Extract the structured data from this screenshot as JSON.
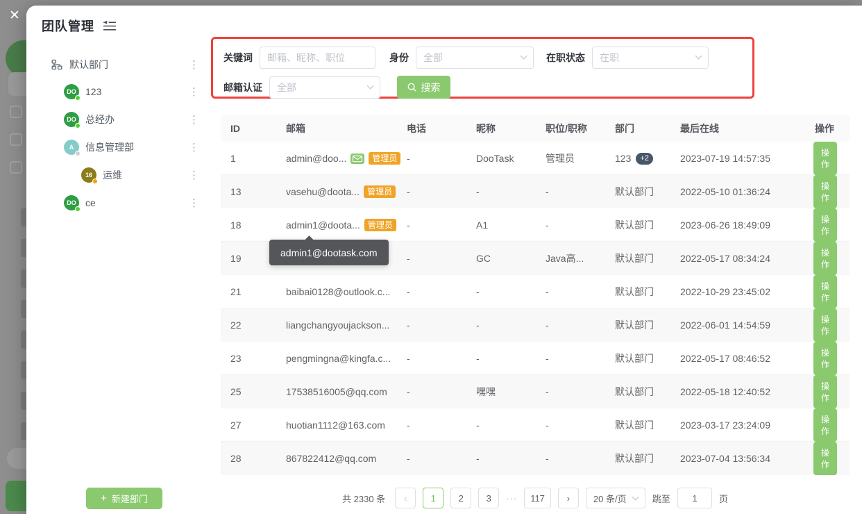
{
  "colors": {
    "accent_green": "#8bc96f",
    "highlight_red": "#f2403a",
    "badge_orange": "#f0a427",
    "count_badge_bg": "#475669",
    "tooltip_bg": "#55565a"
  },
  "icons": {
    "close": "✕",
    "more_vertical": "⋮",
    "prev": "‹",
    "next": "›",
    "plus": "+"
  },
  "modal": {
    "title": "团队管理"
  },
  "sidebar": {
    "root_label": "默认部门",
    "items": [
      {
        "label": "123",
        "avatar_text": "DO",
        "avatar_color": "#2e9e44",
        "dot_color": "#4ed22e",
        "depth": 1
      },
      {
        "label": "总经办",
        "avatar_text": "DO",
        "avatar_color": "#2e9e44",
        "dot_color": "#4ed22e",
        "depth": 1
      },
      {
        "label": "信息管理部",
        "avatar_text": "A",
        "avatar_color": "#85ccc9",
        "dot_color": "#cfcfcf",
        "depth": 1
      },
      {
        "label": "运维",
        "avatar_text": "16",
        "avatar_color": "#8a7d1a",
        "dot_color": "#ff9d00",
        "depth": 2
      },
      {
        "label": "ce",
        "avatar_text": "DO",
        "avatar_color": "#2e9e44",
        "dot_color": "#4ed22e",
        "depth": 1
      }
    ],
    "new_button_label": "新建部门"
  },
  "search": {
    "keyword_label": "关键词",
    "keyword_placeholder": "邮箱、昵称、职位",
    "keyword_value": "",
    "identity_label": "身份",
    "identity_value": "全部",
    "status_label": "在职状态",
    "status_value": "在职",
    "verify_label": "邮箱认证",
    "verify_value": "全部",
    "button_label": "搜索"
  },
  "table": {
    "columns": [
      "ID",
      "邮箱",
      "电话",
      "昵称",
      "职位/职称",
      "部门",
      "最后在线",
      "操作"
    ],
    "admin_badge_label": "管理员",
    "action_label": "操作",
    "rows": [
      {
        "id": "1",
        "email": "admin@doo...",
        "has_mail_icon": true,
        "is_admin": true,
        "phone": "-",
        "nickname": "DooTask",
        "position": "管理员",
        "department": "123",
        "department_extra": "+2",
        "last_online": "2023-07-19 14:57:35"
      },
      {
        "id": "13",
        "email": "vasehu@doota...",
        "has_mail_icon": false,
        "is_admin": true,
        "phone": "-",
        "nickname": "-",
        "position": "-",
        "department": "默认部门",
        "department_extra": "",
        "last_online": "2022-05-10 01:36:24"
      },
      {
        "id": "18",
        "email": "admin1@doota...",
        "has_mail_icon": false,
        "is_admin": true,
        "phone": "-",
        "nickname": "A1",
        "position": "-",
        "department": "默认部门",
        "department_extra": "",
        "last_online": "2023-06-26 18:49:09"
      },
      {
        "id": "19",
        "email": "",
        "has_mail_icon": false,
        "is_admin": false,
        "phone": "-",
        "nickname": "GC",
        "position": "Java高...",
        "department": "默认部门",
        "department_extra": "",
        "last_online": "2022-05-17 08:34:24"
      },
      {
        "id": "21",
        "email": "baibai0128@outlook.c...",
        "has_mail_icon": false,
        "is_admin": false,
        "phone": "-",
        "nickname": "-",
        "position": "-",
        "department": "默认部门",
        "department_extra": "",
        "last_online": "2022-10-29 23:45:02"
      },
      {
        "id": "22",
        "email": "liangchangyoujackson...",
        "has_mail_icon": false,
        "is_admin": false,
        "phone": "-",
        "nickname": "-",
        "position": "-",
        "department": "默认部门",
        "department_extra": "",
        "last_online": "2022-06-01 14:54:59"
      },
      {
        "id": "23",
        "email": "pengmingna@kingfa.c...",
        "has_mail_icon": false,
        "is_admin": false,
        "phone": "-",
        "nickname": "-",
        "position": "-",
        "department": "默认部门",
        "department_extra": "",
        "last_online": "2022-05-17 08:46:52"
      },
      {
        "id": "25",
        "email": "17538516005@qq.com",
        "has_mail_icon": false,
        "is_admin": false,
        "phone": "-",
        "nickname": "嘿嘿",
        "position": "-",
        "department": "默认部门",
        "department_extra": "",
        "last_online": "2022-05-18 12:40:52"
      },
      {
        "id": "27",
        "email": "huotian1112@163.com",
        "has_mail_icon": false,
        "is_admin": false,
        "phone": "-",
        "nickname": "-",
        "position": "-",
        "department": "默认部门",
        "department_extra": "",
        "last_online": "2023-03-17 23:24:09"
      },
      {
        "id": "28",
        "email": "867822412@qq.com",
        "has_mail_icon": false,
        "is_admin": false,
        "phone": "-",
        "nickname": "-",
        "position": "-",
        "department": "默认部门",
        "department_extra": "",
        "last_online": "2023-07-04 13:56:34"
      }
    ]
  },
  "tooltip": {
    "text": "admin1@dootask.com"
  },
  "pagination": {
    "total_label": "共 2330 条",
    "pages": [
      {
        "label": "1",
        "active": true
      },
      {
        "label": "2",
        "active": false
      },
      {
        "label": "3",
        "active": false
      }
    ],
    "ellipsis": "···",
    "last_page": "117",
    "page_size_value": "20 条/页",
    "jump_label": "跳至",
    "jump_value": "1",
    "jump_suffix_label": "页"
  }
}
